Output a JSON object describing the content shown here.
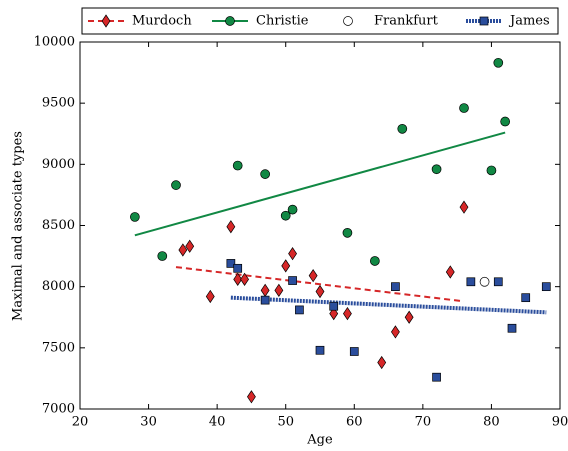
{
  "chart_data": {
    "type": "scatter",
    "x_label": "Age",
    "y_label": "Maximal and associate types",
    "xlim": [
      20,
      90
    ],
    "xticks": [
      20,
      30,
      40,
      50,
      60,
      70,
      80,
      90
    ],
    "ylim": [
      7000,
      10000
    ],
    "yticks": [
      7000,
      7500,
      8000,
      8500,
      9000,
      9500,
      10000
    ],
    "series": [
      {
        "name": "Murdoch",
        "color": "#d62728",
        "marker": "diamond",
        "line_style": "dashed",
        "x": [
          35,
          36,
          39,
          42,
          43,
          44,
          47,
          49,
          50,
          51,
          54,
          55,
          57,
          59,
          64,
          66,
          68,
          74,
          76,
          45
        ],
        "values": [
          8300,
          8330,
          7920,
          8490,
          8060,
          8060,
          7970,
          7970,
          8170,
          8270,
          8090,
          7960,
          7780,
          7780,
          7380,
          7630,
          7750,
          8120,
          8650,
          7100
        ],
        "trend": {
          "x": [
            34,
            76
          ],
          "values": [
            8160,
            7880
          ]
        }
      },
      {
        "name": "Christie",
        "color": "#118844",
        "marker": "circle",
        "line_style": "solid",
        "x": [
          28,
          32,
          34,
          43,
          47,
          50,
          51,
          59,
          63,
          67,
          72,
          76,
          80,
          81,
          82
        ],
        "values": [
          8570,
          8250,
          8830,
          8990,
          8920,
          8580,
          8630,
          8440,
          8210,
          9290,
          8960,
          9460,
          8950,
          9830,
          9350
        ],
        "trend": {
          "x": [
            28,
            82
          ],
          "values": [
            8420,
            9260
          ]
        }
      },
      {
        "name": "Frankfurt",
        "color": "#ffffff",
        "marker": "circle",
        "line_style": "none",
        "x": [
          79
        ],
        "values": [
          8040
        ]
      },
      {
        "name": "James",
        "color": "#2a4d9c",
        "marker": "square",
        "line_style": "dotted",
        "x": [
          42,
          43,
          47,
          51,
          52,
          55,
          57,
          60,
          66,
          72,
          77,
          81,
          83,
          85,
          88
        ],
        "values": [
          8190,
          8150,
          7890,
          8050,
          7810,
          7480,
          7840,
          7470,
          8000,
          7260,
          8040,
          8040,
          7660,
          7910,
          8000
        ],
        "trend": {
          "x": [
            42,
            88
          ],
          "values": [
            7910,
            7790
          ]
        }
      }
    ]
  }
}
